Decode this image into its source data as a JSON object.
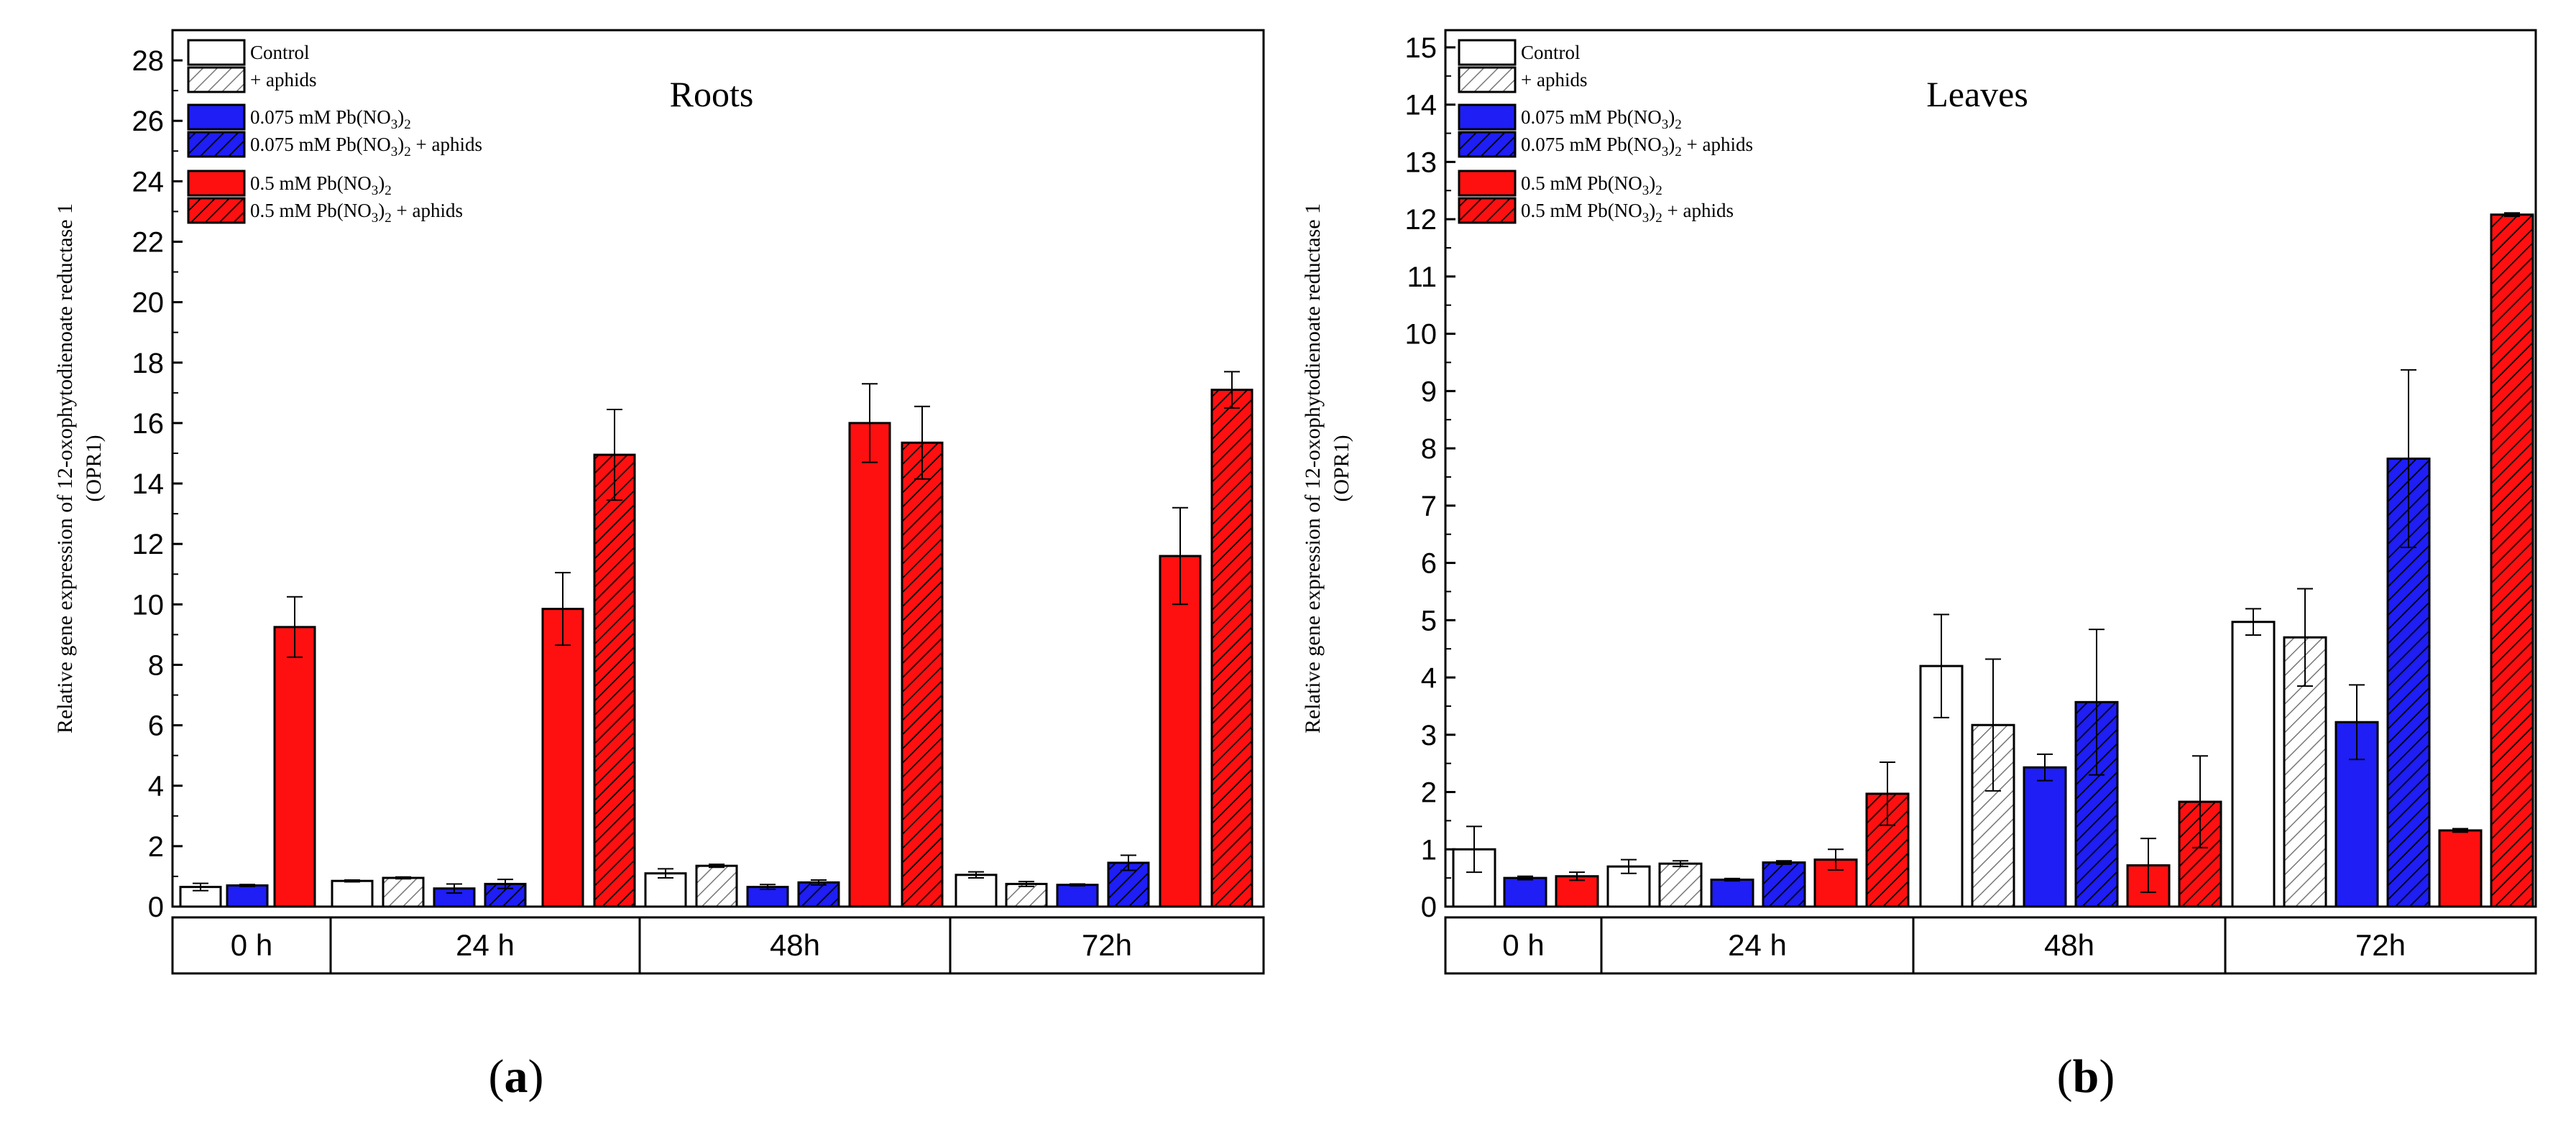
{
  "colors": {
    "control": "#ffffff",
    "pb075": "#1e1ef5",
    "pb05": "#ff1010",
    "stroke": "#000000"
  },
  "legend_labels": [
    "Control",
    "+ aphids",
    "0.075 mM Pb(NO3)2",
    "0.075 mM Pb(NO3)2 +  aphids",
    "0.5 mM Pb(NO3)2",
    "0.5 mM Pb(NO3)2 + aphids"
  ],
  "legend_rich": [
    {
      "main": "Control",
      "sub": "",
      "tail": "",
      "sub2": "",
      "tail2": ""
    },
    {
      "main": "+ aphids",
      "sub": "",
      "tail": "",
      "sub2": "",
      "tail2": ""
    },
    {
      "main": "0.075 mM Pb(NO",
      "sub": "3",
      "tail": ")",
      "sub2": "2",
      "tail2": ""
    },
    {
      "main": "0.075 mM Pb(NO",
      "sub": "3",
      "tail": ")",
      "sub2": "2",
      "tail2": " +  aphids"
    },
    {
      "main": "0.5 mM Pb(NO",
      "sub": "3",
      "tail": ")",
      "sub2": "2",
      "tail2": ""
    },
    {
      "main": "0.5 mM Pb(NO",
      "sub": "3",
      "tail": ")",
      "sub2": "2",
      "tail2": " + aphids"
    }
  ],
  "chart_data": [
    {
      "type": "bar",
      "panel_label": "a",
      "title": "Roots",
      "ylabel": "Relative gene expression of 12-oxophytodienoate reductase 1 (OPR1)",
      "ylabel_line1": "Relative gene expression of 12-oxophytodienoate reductase 1",
      "ylabel_line2": "(OPR1)",
      "ylim": [
        0,
        29
      ],
      "yticks": [
        0,
        2,
        4,
        6,
        8,
        10,
        12,
        14,
        16,
        18,
        20,
        22,
        24,
        26,
        28
      ],
      "legend_position": "top-left",
      "groups": [
        {
          "label": "0 h",
          "bars": [
            {
              "series": "Control",
              "value": 0.65,
              "error": 0.12
            },
            {
              "series": "0.075 mM Pb(NO3)2",
              "value": 0.7,
              "error": 0.03
            },
            {
              "series": "0.5 mM Pb(NO3)2",
              "value": 9.25,
              "error": 1.0
            }
          ]
        },
        {
          "label": "24 h",
          "bars": [
            {
              "series": "Control",
              "value": 0.85,
              "error": 0.03
            },
            {
              "series": "+ aphids",
              "value": 0.95,
              "error": 0.03
            },
            {
              "series": "0.075 mM Pb(NO3)2",
              "value": 0.6,
              "error": 0.15
            },
            {
              "series": "0.075 mM Pb(NO3)2 + aphids",
              "value": 0.75,
              "error": 0.15
            },
            {
              "series": "0.5 mM Pb(NO3)2",
              "value": 9.85,
              "error": 1.2
            },
            {
              "series": "0.5 mM Pb(NO3)2 + aphids",
              "value": 14.95,
              "error": 1.5
            }
          ]
        },
        {
          "label": "48h",
          "bars": [
            {
              "series": "Control",
              "value": 1.1,
              "error": 0.15
            },
            {
              "series": "+ aphids",
              "value": 1.35,
              "error": 0.05
            },
            {
              "series": "0.075 mM Pb(NO3)2",
              "value": 0.65,
              "error": 0.08
            },
            {
              "series": "0.075 mM Pb(NO3)2 + aphids",
              "value": 0.8,
              "error": 0.08
            },
            {
              "series": "0.5 mM Pb(NO3)2",
              "value": 16.0,
              "error": 1.3
            },
            {
              "series": "0.5 mM Pb(NO3)2 + aphids",
              "value": 15.35,
              "error": 1.2
            }
          ]
        },
        {
          "label": "72h",
          "bars": [
            {
              "series": "Control",
              "value": 1.05,
              "error": 0.1
            },
            {
              "series": "+ aphids",
              "value": 0.75,
              "error": 0.08
            },
            {
              "series": "0.075 mM Pb(NO3)2",
              "value": 0.72,
              "error": 0.03
            },
            {
              "series": "0.075 mM Pb(NO3)2 + aphids",
              "value": 1.45,
              "error": 0.25
            },
            {
              "series": "0.5 mM Pb(NO3)2",
              "value": 11.6,
              "error": 1.6
            },
            {
              "series": "0.5 mM Pb(NO3)2 + aphids",
              "value": 17.1,
              "error": 0.6
            }
          ]
        }
      ]
    },
    {
      "type": "bar",
      "panel_label": "b",
      "title": "Leaves",
      "ylabel": "Relative gene expression of 12-oxophytodienoate reductase 1 (OPR1)",
      "ylabel_line1": "Relative gene expression of 12-oxophytodienoate reductase 1",
      "ylabel_line2": "(OPR1)",
      "ylim": [
        0,
        15.3
      ],
      "yticks": [
        0,
        1,
        2,
        3,
        4,
        5,
        6,
        7,
        8,
        9,
        10,
        11,
        12,
        13,
        14,
        15
      ],
      "legend_position": "top-left",
      "groups": [
        {
          "label": "0 h",
          "bars": [
            {
              "series": "Control",
              "value": 1.0,
              "error": 0.4
            },
            {
              "series": "0.075 mM Pb(NO3)2",
              "value": 0.5,
              "error": 0.03
            },
            {
              "series": "0.5 mM Pb(NO3)2",
              "value": 0.53,
              "error": 0.07
            }
          ]
        },
        {
          "label": "24 h",
          "bars": [
            {
              "series": "Control",
              "value": 0.7,
              "error": 0.12
            },
            {
              "series": "+ aphids",
              "value": 0.75,
              "error": 0.05
            },
            {
              "series": "0.075 mM Pb(NO3)2",
              "value": 0.47,
              "error": 0.02
            },
            {
              "series": "0.075 mM Pb(NO3)2 + aphids",
              "value": 0.77,
              "error": 0.03
            },
            {
              "series": "0.5 mM Pb(NO3)2",
              "value": 0.82,
              "error": 0.18
            },
            {
              "series": "0.5 mM Pb(NO3)2 + aphids",
              "value": 1.97,
              "error": 0.55
            }
          ]
        },
        {
          "label": "48h",
          "bars": [
            {
              "series": "Control",
              "value": 4.2,
              "error": 0.9
            },
            {
              "series": "+ aphids",
              "value": 3.17,
              "error": 1.15
            },
            {
              "series": "0.075 mM Pb(NO3)2",
              "value": 2.43,
              "error": 0.23
            },
            {
              "series": "0.075 mM Pb(NO3)2 + aphids",
              "value": 3.57,
              "error": 1.27
            },
            {
              "series": "0.5 mM Pb(NO3)2",
              "value": 0.72,
              "error": 0.47
            },
            {
              "series": "0.5 mM Pb(NO3)2 + aphids",
              "value": 1.83,
              "error": 0.8
            }
          ]
        },
        {
          "label": "72h",
          "bars": [
            {
              "series": "Control",
              "value": 4.97,
              "error": 0.23
            },
            {
              "series": "+ aphids",
              "value": 4.7,
              "error": 0.85
            },
            {
              "series": "0.075 mM Pb(NO3)2",
              "value": 3.22,
              "error": 0.65
            },
            {
              "series": "0.075 mM Pb(NO3)2 + aphids",
              "value": 7.82,
              "error": 1.55
            },
            {
              "series": "0.5 mM Pb(NO3)2",
              "value": 1.33,
              "error": 0.03
            },
            {
              "series": "0.5 mM Pb(NO3)2 + aphids",
              "value": 12.08,
              "error": 0.03
            }
          ]
        }
      ]
    }
  ]
}
